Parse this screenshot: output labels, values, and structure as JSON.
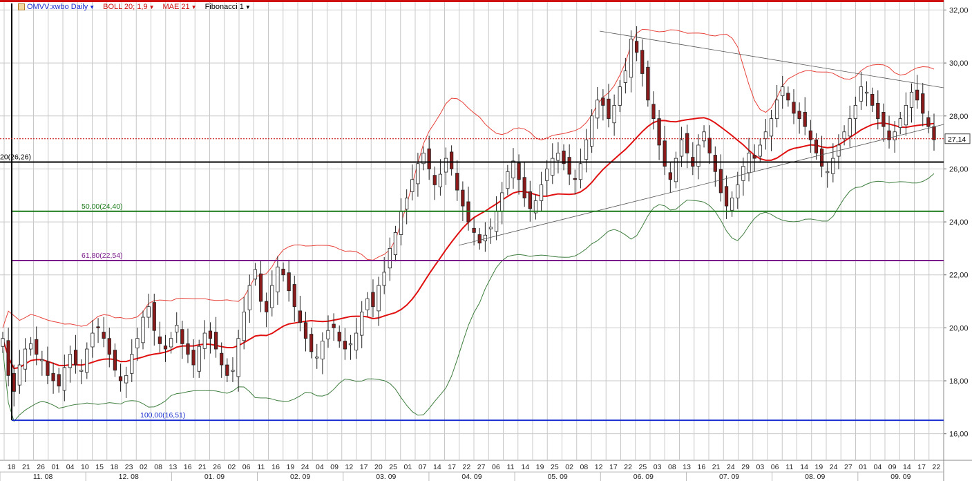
{
  "toolbar": {
    "symbol": "OMVV:xwbo Daily",
    "boll": "BOLL 20; 1,9",
    "mae": "MAE 21",
    "fib": "Fibonacci 1"
  },
  "colors": {
    "candle_up": "#ffffff",
    "candle_down": "#8b1a1a",
    "candle_outline": "#222222",
    "boll_upper": "#e8423a",
    "boll_lower": "#3e7d3e",
    "mae": "#e01010",
    "fib_0": "#000000",
    "fib_50": "#1a7a1a",
    "fib_618": "#7a1a8a",
    "fib_100": "#1a2fd0",
    "last_price": "#c00000",
    "grid": "#c8c8c8",
    "top_border": "#d01010"
  },
  "fib_labels": {
    "f0": "20(26,26)",
    "f50": "50,00(24,40)",
    "f618": "61,80(22,54)",
    "f100": "100,00(16,51)"
  },
  "last_price_label": "27,14",
  "chart_data": {
    "type": "candlestick",
    "title": "OMVV:xwbo Daily",
    "ylim": [
      15.0,
      32.3
    ],
    "y_ticks": [
      "16,00",
      "18,00",
      "20,00",
      "22,00",
      "24,00",
      "26,00",
      "28,00",
      "30,00",
      "32,00"
    ],
    "x_day_labels": [
      "18",
      "21",
      "26",
      "01",
      "04",
      "10",
      "15",
      "18",
      "23",
      "02",
      "08",
      "13",
      "16",
      "21",
      "26",
      "02",
      "06",
      "11",
      "16",
      "19",
      "24",
      "04",
      "09",
      "12",
      "17",
      "20",
      "25",
      "01",
      "07",
      "14",
      "17",
      "22",
      "27",
      "06",
      "11",
      "14",
      "19",
      "25",
      "02",
      "08",
      "12",
      "17",
      "22",
      "25",
      "03",
      "08",
      "13",
      "16",
      "21",
      "24",
      "29",
      "03",
      "06",
      "11",
      "14",
      "19",
      "24",
      "27",
      "01",
      "04",
      "09",
      "14",
      "17",
      "22"
    ],
    "x_month_labels": [
      "11. 08",
      "12. 08",
      "01. 09",
      "02. 09",
      "03. 09",
      "04. 09",
      "05. 09",
      "06. 09",
      "07. 09",
      "08. 09",
      "09. 09"
    ],
    "fibonacci": [
      {
        "level": "0",
        "value": 26.26
      },
      {
        "level": "50,00",
        "value": 24.4
      },
      {
        "level": "61,80",
        "value": 22.54
      },
      {
        "level": "100,00",
        "value": 16.51
      }
    ],
    "last_price": 27.14,
    "close_series": [
      19.6,
      18.2,
      17.6,
      18.6,
      19.2,
      19.4,
      19.0,
      18.8,
      18.2,
      18.0,
      17.8,
      18.5,
      19.0,
      18.6,
      18.4,
      19.2,
      19.8,
      20.0,
      19.6,
      19.0,
      18.4,
      18.0,
      18.2,
      19.0,
      19.6,
      20.4,
      20.8,
      19.9,
      19.4,
      19.2,
      19.6,
      20.1,
      19.4,
      19.0,
      18.6,
      19.3,
      19.8,
      19.6,
      19.2,
      18.6,
      18.2,
      18.4,
      19.6,
      20.6,
      21.6,
      22.2,
      21.0,
      20.6,
      21.6,
      22.3,
      22.0,
      21.4,
      20.8,
      20.2,
      19.6,
      19.1,
      18.9,
      19.5,
      19.9,
      20.0,
      19.5,
      19.2,
      19.4,
      19.8,
      20.6,
      21.1,
      20.8,
      21.6,
      22.1,
      23.0,
      23.6,
      24.4,
      24.9,
      25.6,
      26.2,
      26.6,
      26.0,
      25.4,
      25.8,
      26.4,
      26.0,
      25.2,
      24.6,
      24.0,
      23.6,
      23.2,
      23.5,
      23.8,
      24.4,
      25.1,
      25.9,
      26.3,
      25.6,
      24.9,
      24.5,
      24.8,
      25.4,
      26.0,
      26.4,
      26.6,
      26.2,
      25.8,
      25.6,
      26.2,
      27.1,
      28.0,
      28.6,
      28.4,
      27.9,
      28.4,
      29.1,
      29.7,
      30.9,
      30.4,
      29.6,
      28.6,
      27.9,
      26.9,
      26.1,
      25.6,
      26.4,
      27.1,
      26.6,
      26.1,
      26.9,
      27.4,
      26.6,
      25.9,
      25.1,
      24.6,
      24.9,
      25.4,
      26.1,
      26.6,
      26.4,
      26.9,
      27.4,
      27.9,
      28.6,
      29.1,
      28.6,
      28.1,
      27.9,
      27.6,
      27.1,
      26.6,
      26.1,
      25.9,
      26.4,
      26.9,
      27.4,
      27.9,
      28.4,
      29.1,
      28.9,
      28.4,
      27.9,
      27.6,
      27.1,
      27.4,
      27.9,
      28.4,
      28.9,
      28.6,
      28.1,
      27.6,
      27.1
    ]
  }
}
